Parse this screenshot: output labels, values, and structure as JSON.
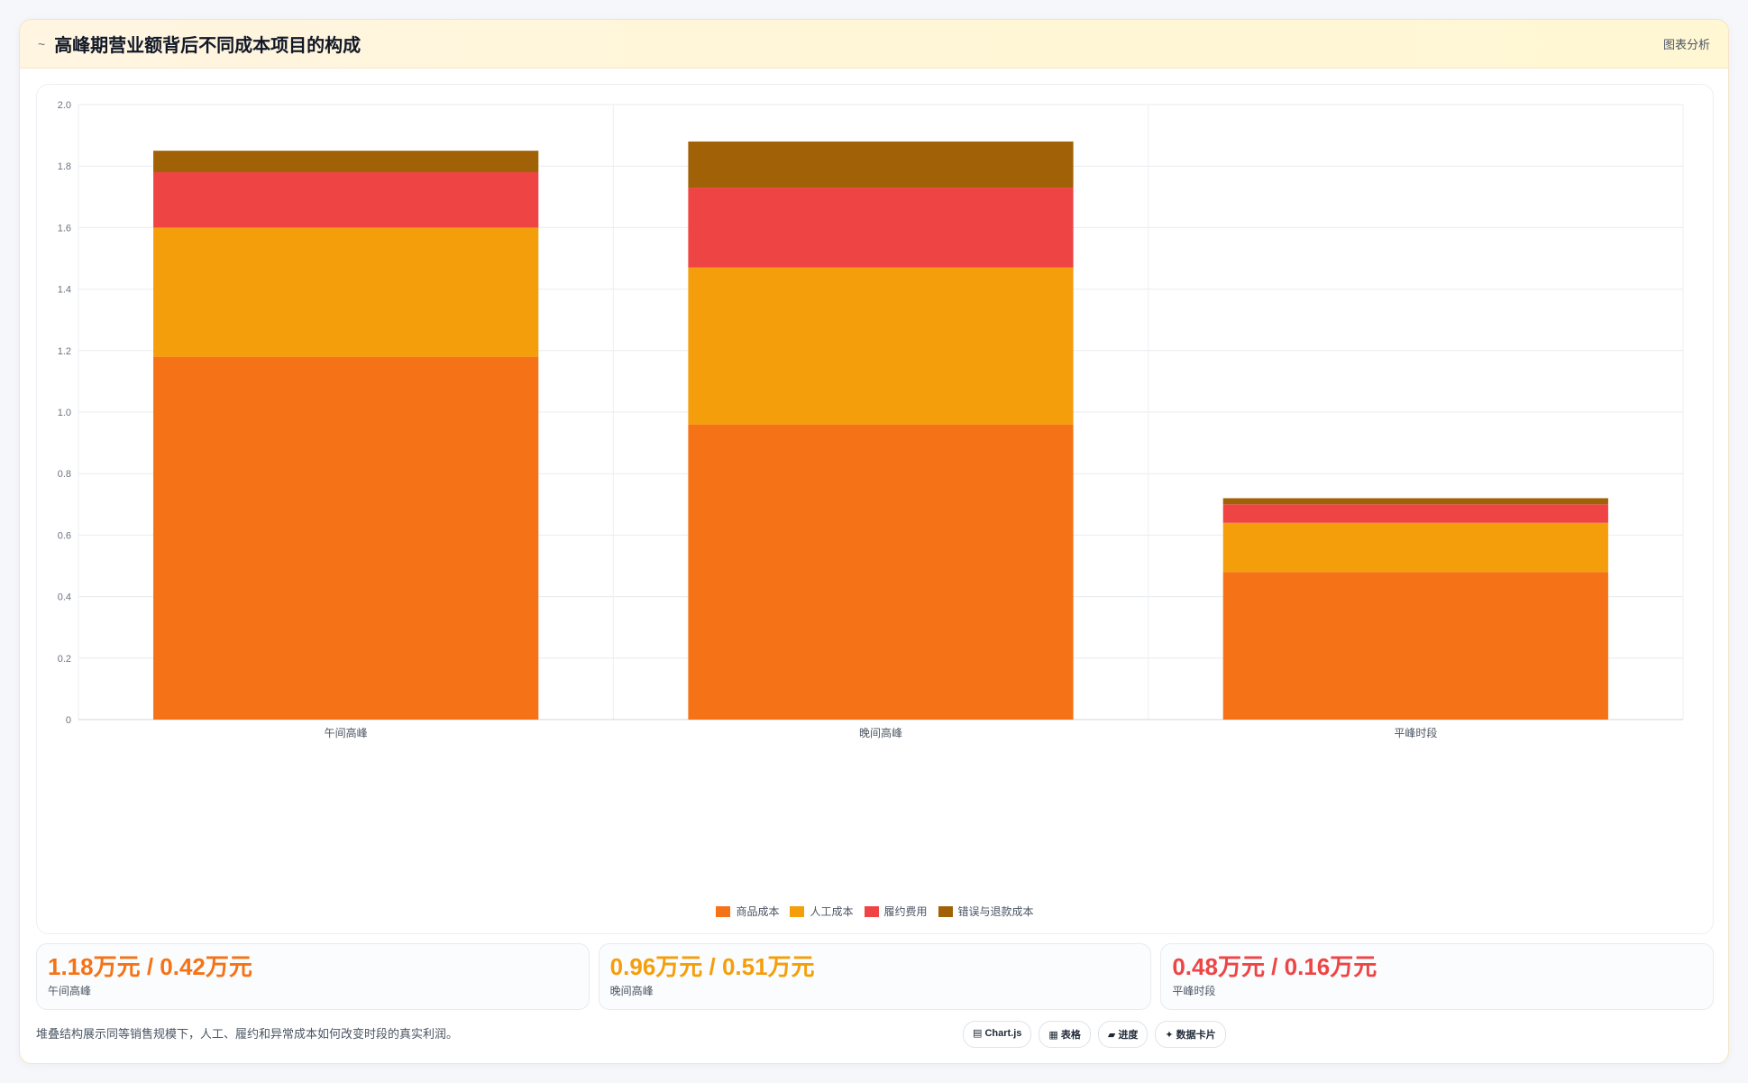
{
  "header": {
    "icon": "~",
    "title": "高峰期营业额背后不同成本项目的构成",
    "link": "图表分析"
  },
  "chart_data": {
    "type": "bar",
    "stacked": true,
    "categories": [
      "午间高峰",
      "晚间高峰",
      "平峰时段"
    ],
    "series": [
      {
        "name": "商品成本",
        "color": "#f57316",
        "values": [
          1.18,
          0.96,
          0.48
        ]
      },
      {
        "name": "人工成本",
        "color": "#f59e0b",
        "values": [
          0.42,
          0.51,
          0.16
        ]
      },
      {
        "name": "履约费用",
        "color": "#ef4444",
        "values": [
          0.18,
          0.26,
          0.06
        ]
      },
      {
        "name": "错误与退款成本",
        "color": "#a16207",
        "values": [
          0.07,
          0.15,
          0.02
        ]
      }
    ],
    "ylim": [
      0,
      2.0
    ],
    "yticks": [
      "0",
      "0.2",
      "0.4",
      "0.6",
      "0.8",
      "1.0",
      "1.2",
      "1.4",
      "1.6",
      "1.8",
      "2.0"
    ],
    "grid": true,
    "legend_position": "bottom"
  },
  "stats": [
    {
      "value": "1.18万元 / 0.42万元",
      "label": "午间高峰",
      "color": "#f57316"
    },
    {
      "value": "0.96万元 / 0.51万元",
      "label": "晚间高峰",
      "color": "#f59e0b"
    },
    {
      "value": "0.48万元 / 0.16万元",
      "label": "平峰时段",
      "color": "#ef4444"
    }
  ],
  "footnote": "堆叠结构展示同等销售规模下，人工、履约和异常成本如何改变时段的真实利润。",
  "tags": [
    "▤ Chart.js",
    "▦ 表格",
    "▰ 进度",
    "✦ 数据卡片"
  ]
}
